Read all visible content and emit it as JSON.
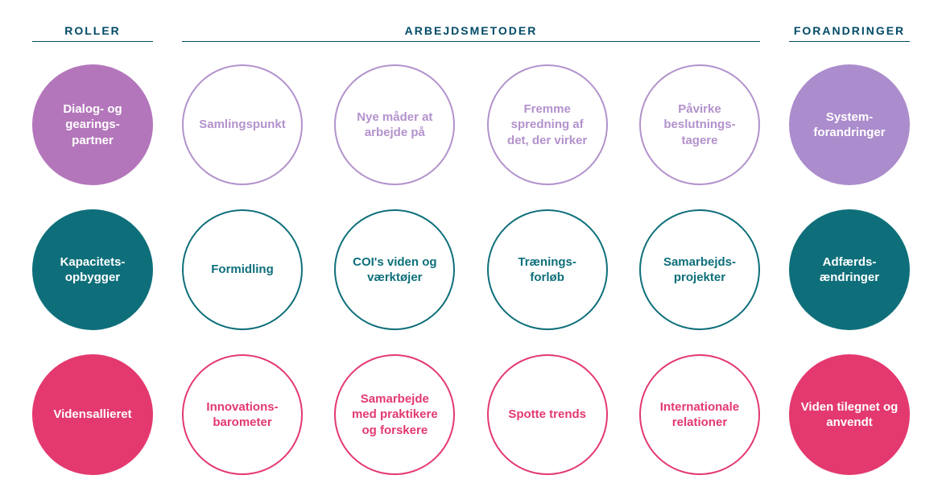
{
  "headers": {
    "roles": "ROLLER",
    "methods": "ARBEJDSMETODER",
    "changes": "FORANDRINGER"
  },
  "colors": {
    "header_text": "#004a66",
    "header_rule": "#004a66",
    "purple_solid": "#b376bb",
    "purple_outline": "#b392cc",
    "purple_change": "#ab8ccc",
    "teal_solid": "#0e6f7a",
    "teal_outline": "#0e6f7a",
    "pink_solid": "#e3396f",
    "pink_outline": "#e3396f",
    "background": "#ffffff"
  },
  "typography": {
    "header_fontsize": 14,
    "header_letterspacing": 2,
    "circle_fontsize": 15,
    "circle_fontweight": 700,
    "line_height": 1.3
  },
  "layout": {
    "circle_diameter": 150,
    "row_gap": 30,
    "side_col_width": 150,
    "mid_margin": 36,
    "outline_border_width": 2
  },
  "rows": [
    {
      "role": "Dialog- og gearings-partner",
      "role_color": "#b376bb",
      "method_color": "#b392cc",
      "change_color": "#ab8ccc",
      "methods": [
        "Samlingspunkt",
        "Nye måder at arbejde på",
        "Fremme spredning af det, der virker",
        "Påvirke beslutnings-tagere"
      ],
      "change": "System-forandringer"
    },
    {
      "role": "Kapacitets-opbygger",
      "role_color": "#0e6f7a",
      "method_color": "#0e6f7a",
      "change_color": "#0e6f7a",
      "methods": [
        "Formidling",
        "COI's viden og værktøjer",
        "Trænings-forløb",
        "Samarbejds-projekter"
      ],
      "change": "Adfærds-ændringer"
    },
    {
      "role": "Vidensallieret",
      "role_color": "#e3396f",
      "method_color": "#e3396f",
      "change_color": "#e3396f",
      "methods": [
        "Innovations-barometer",
        "Samarbejde med praktikere og forskere",
        "Spotte trends",
        "Internationale relationer"
      ],
      "change": "Viden tilegnet og anvendt"
    }
  ]
}
